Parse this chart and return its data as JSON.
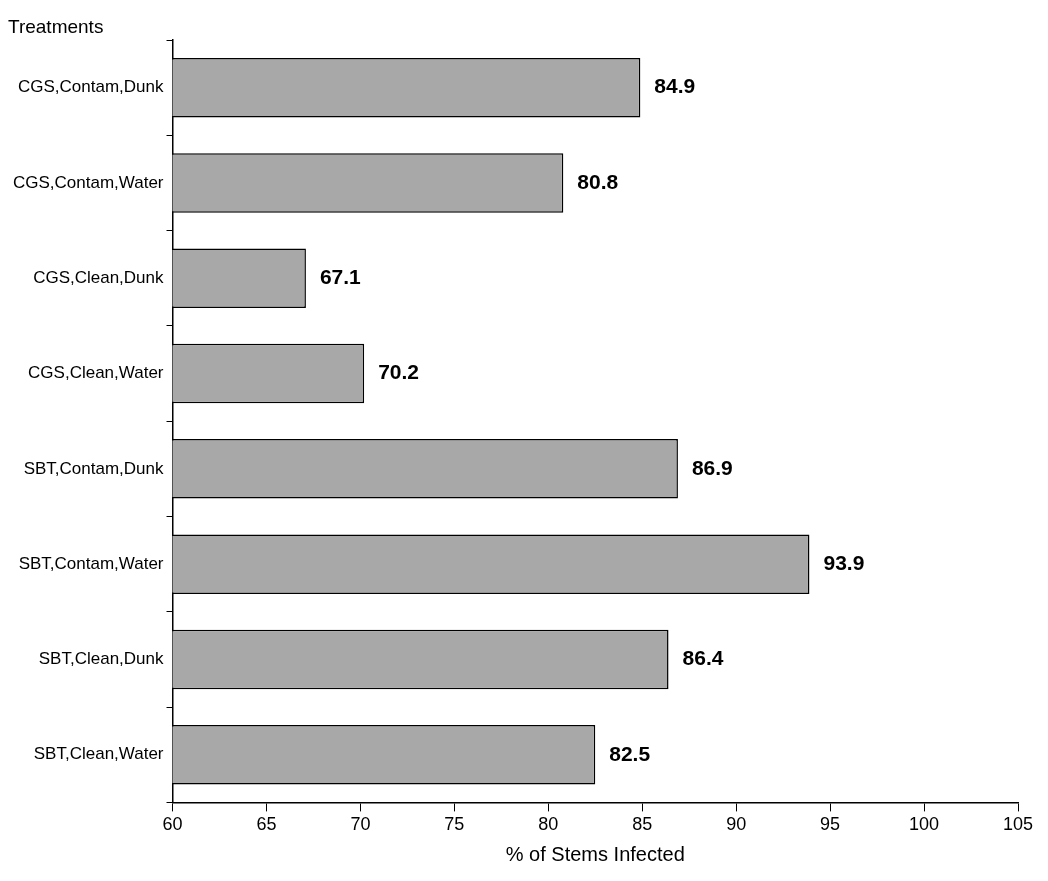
{
  "chart_data": {
    "type": "bar",
    "orientation": "horizontal",
    "xlabel": "% of Stems Infected",
    "ylabel": "Treatments",
    "categories": [
      "CGS,Contam,Dunk",
      "CGS,Contam,Water",
      "CGS,Clean,Dunk",
      "CGS,Clean,Water",
      "SBT,Contam,Dunk",
      "SBT,Contam,Water",
      "SBT,Clean,Dunk",
      "SBT,Clean,Water"
    ],
    "values": [
      84.9,
      80.8,
      67.1,
      70.2,
      86.9,
      93.9,
      86.4,
      82.5
    ],
    "color": "#a8a8a8",
    "xlim": [
      60,
      105
    ],
    "xticks": [
      60,
      65,
      70,
      75,
      80,
      85,
      90,
      95,
      100,
      105
    ],
    "data_labels": true,
    "legend": false,
    "grid": false
  }
}
